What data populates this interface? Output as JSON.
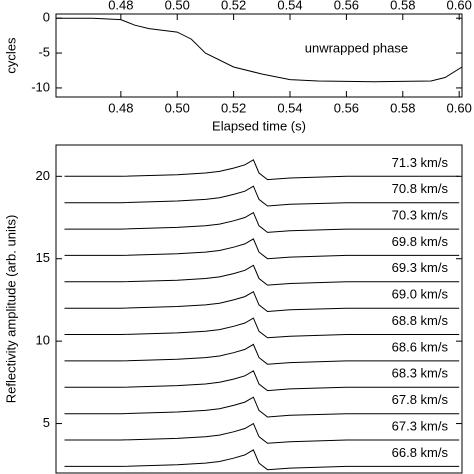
{
  "chart_data": [
    {
      "type": "line",
      "x_label": "Elapsed time (s)",
      "y_label": "cycles",
      "annotation": "unwrapped phase",
      "x": [
        0.457,
        0.47,
        0.48,
        0.485,
        0.49,
        0.5,
        0.505,
        0.51,
        0.52,
        0.53,
        0.54,
        0.55,
        0.57,
        0.59,
        0.595,
        0.601
      ],
      "series": [
        {
          "color": "#000000",
          "values": [
            0,
            0,
            -0.2,
            -1,
            -1.5,
            -2,
            -3,
            -5,
            -7,
            -8,
            -8.8,
            -9,
            -9.1,
            -9,
            -8.5,
            -7
          ]
        }
      ],
      "xlim": [
        0.457,
        0.601
      ],
      "ylim": [
        -11.3,
        0.6
      ],
      "xticks": [
        0.48,
        {
          "value": 0.5,
          "label": "0.50"
        },
        0.52,
        0.54,
        0.56,
        0.58,
        {
          "value": 0.6,
          "label": "0.60"
        }
      ],
      "yticks": [
        0,
        -5,
        -10
      ]
    },
    {
      "type": "line",
      "y_label": "Reflectivity amplitude (arb. units)",
      "x": [
        0.46,
        0.48,
        0.5,
        0.51,
        0.515,
        0.52,
        0.524,
        0.527,
        0.529,
        0.532,
        0.54,
        0.56,
        0.58,
        0.6
      ],
      "series": [
        {
          "name": "71.3 km/s",
          "color": "#000000",
          "values": [
            20,
            20,
            20.1,
            20.2,
            20.3,
            20.5,
            20.7,
            21,
            20.2,
            19.8,
            19.9,
            20,
            20,
            20
          ]
        },
        {
          "name": "70.8 km/s",
          "color": "#000000",
          "values": [
            18.4,
            18.4,
            18.5,
            18.6,
            18.7,
            18.9,
            19.1,
            19.4,
            18.6,
            18.2,
            18.3,
            18.4,
            18.4,
            18.4
          ]
        },
        {
          "name": "70.3 km/s",
          "color": "#000000",
          "values": [
            16.8,
            16.8,
            16.9,
            17,
            17.1,
            17.3,
            17.5,
            17.8,
            17,
            16.6,
            16.7,
            16.8,
            16.8,
            16.8
          ]
        },
        {
          "name": "69.8 km/s",
          "color": "#000000",
          "values": [
            15.2,
            15.2,
            15.3,
            15.4,
            15.5,
            15.7,
            15.9,
            16.2,
            15.4,
            15,
            15.1,
            15.2,
            15.2,
            15.2
          ]
        },
        {
          "name": "69.3 km/s",
          "color": "#000000",
          "values": [
            13.6,
            13.6,
            13.7,
            13.8,
            13.9,
            14.1,
            14.3,
            14.6,
            13.8,
            13.4,
            13.5,
            13.6,
            13.6,
            13.6
          ]
        },
        {
          "name": "69.0 km/s",
          "color": "#000000",
          "values": [
            12,
            12,
            12.1,
            12.2,
            12.3,
            12.5,
            12.7,
            13,
            12.2,
            11.8,
            11.9,
            12,
            12,
            12
          ]
        },
        {
          "name": "68.8 km/s",
          "color": "#000000",
          "values": [
            10.4,
            10.4,
            10.5,
            10.6,
            10.7,
            10.9,
            11.1,
            11.4,
            10.6,
            10.2,
            10.3,
            10.4,
            10.4,
            10.4
          ]
        },
        {
          "name": "68.6 km/s",
          "color": "#000000",
          "values": [
            8.8,
            8.8,
            8.9,
            9,
            9.1,
            9.3,
            9.5,
            9.8,
            9,
            8.6,
            8.7,
            8.8,
            8.8,
            8.8
          ]
        },
        {
          "name": "68.3 km/s",
          "color": "#000000",
          "values": [
            7.2,
            7.2,
            7.3,
            7.4,
            7.5,
            7.7,
            7.9,
            8.2,
            7.4,
            7,
            7.1,
            7.2,
            7.2,
            7.2
          ]
        },
        {
          "name": "67.8 km/s",
          "color": "#000000",
          "values": [
            5.6,
            5.6,
            5.7,
            5.8,
            5.9,
            6.1,
            6.3,
            6.6,
            5.8,
            5.4,
            5.5,
            5.6,
            5.6,
            5.6
          ]
        },
        {
          "name": "67.3 km/s",
          "color": "#000000",
          "values": [
            4,
            4,
            4.1,
            4.2,
            4.3,
            4.5,
            4.7,
            5,
            4.2,
            3.8,
            3.9,
            4,
            4,
            4
          ]
        },
        {
          "name": "66.8 km/s",
          "color": "#000000",
          "values": [
            2.4,
            2.4,
            2.5,
            2.6,
            2.7,
            2.9,
            3.1,
            3.4,
            2.6,
            2.2,
            2.3,
            2.4,
            2.4,
            2.4
          ]
        }
      ],
      "xlim": [
        0.457,
        0.601
      ],
      "ylim": [
        2,
        21.9
      ],
      "yticks": [
        5,
        10,
        15,
        20
      ]
    }
  ]
}
